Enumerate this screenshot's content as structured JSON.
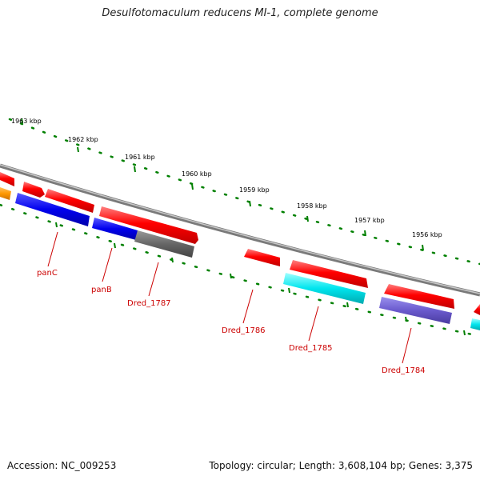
{
  "title": "Desulfotomaculum reducens MI-1, complete genome",
  "footer": {
    "accession": "Accession: NC_009253",
    "summary": "Topology: circular; Length: 3,608,104 bp; Genes: 3,375"
  },
  "colors": {
    "forward_gene": "#ff0000",
    "reverse_gene_blue": "#0000ee",
    "reverse_gene_cyan": "#00e5ee",
    "reverse_gene_purple": "#6a5acd",
    "reverse_gene_gray": "#666666",
    "orange_feature": "#ff9900",
    "backbone": "#888888",
    "ticks": "#008000",
    "label": "#cc0000"
  },
  "ticks": [
    {
      "label": "1963 kbp"
    },
    {
      "label": "1962 kbp"
    },
    {
      "label": "1961 kbp"
    },
    {
      "label": "1960 kbp"
    },
    {
      "label": "1959 kbp"
    },
    {
      "label": "1958 kbp"
    },
    {
      "label": "1957 kbp"
    },
    {
      "label": "1956 kbp"
    }
  ],
  "gene_labels": [
    {
      "label": "panC"
    },
    {
      "label": "panB"
    },
    {
      "label": "Dred_1787"
    },
    {
      "label": "Dred_1786"
    },
    {
      "label": "Dred_1785"
    },
    {
      "label": "Dred_1784"
    }
  ]
}
